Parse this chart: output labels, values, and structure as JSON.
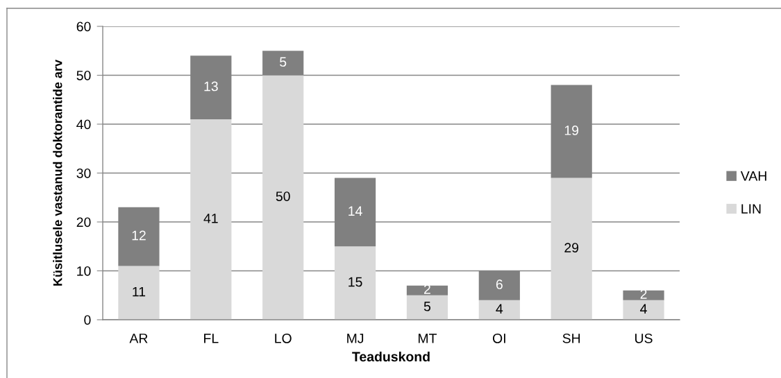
{
  "chart_data": {
    "type": "bar",
    "stacked": true,
    "xlabel": "Teaduskond",
    "ylabel": "Küsitlusele vastanud doktorantide arv",
    "categories": [
      "AR",
      "FL",
      "LO",
      "MJ",
      "MT",
      "OI",
      "SH",
      "US"
    ],
    "series": [
      {
        "name": "LIN",
        "color": "#d9d9d9",
        "values": [
          11,
          41,
          50,
          15,
          5,
          4,
          29,
          4
        ]
      },
      {
        "name": "VAH",
        "color": "#808080",
        "values": [
          12,
          13,
          5,
          14,
          2,
          6,
          19,
          2
        ]
      }
    ],
    "ylim": [
      0,
      60
    ],
    "yticks": [
      0,
      10,
      20,
      30,
      40,
      50,
      60
    ],
    "grid": "y",
    "legend": "right",
    "data_labels": true
  }
}
